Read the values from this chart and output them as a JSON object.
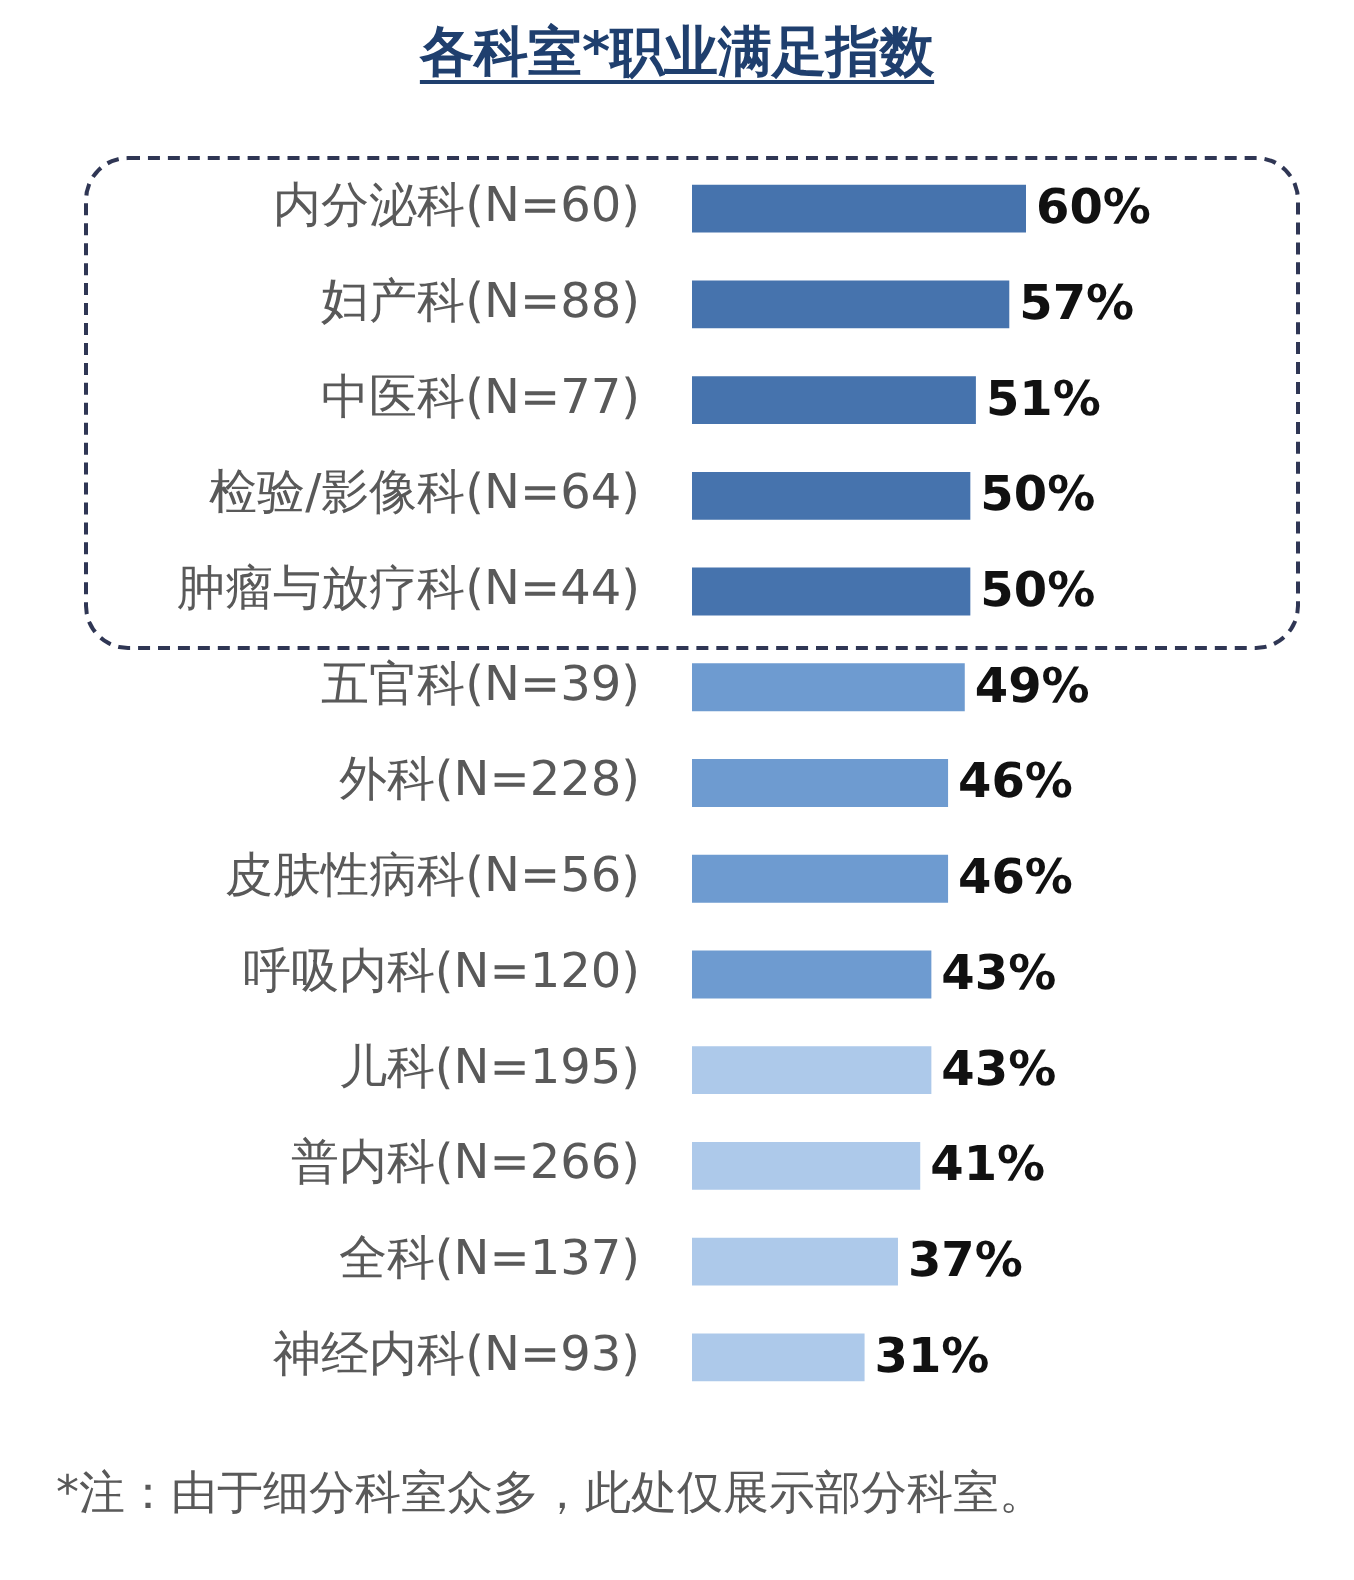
{
  "chart_data": {
    "type": "bar",
    "orientation": "horizontal",
    "title": "各科室*职业满足指数",
    "categories": [
      "内分泌科(N=60)",
      "妇产科(N=88)",
      "中医科(N=77)",
      "检验/影像科(N=64)",
      "肿瘤与放疗科(N=44)",
      "五官科(N=39)",
      "外科(N=228)",
      "皮肤性病科(N=56)",
      "呼吸内科(N=120)",
      "儿科(N=195)",
      "普内科(N=266)",
      "全科(N=137)",
      "神经内科(N=93)"
    ],
    "values": [
      60,
      57,
      51,
      50,
      50,
      49,
      46,
      46,
      43,
      43,
      41,
      37,
      31
    ],
    "value_labels": [
      "60%",
      "57%",
      "51%",
      "50%",
      "50%",
      "49%",
      "46%",
      "46%",
      "43%",
      "43%",
      "41%",
      "37%",
      "31%"
    ],
    "colors": [
      "#4673ad",
      "#4673ad",
      "#4673ad",
      "#4673ad",
      "#4673ad",
      "#6e9bd0",
      "#6e9bd0",
      "#6e9bd0",
      "#6e9bd0",
      "#adc9ea",
      "#adc9ea",
      "#adc9ea",
      "#adc9ea"
    ],
    "tick_labels": "y",
    "legend": false,
    "annotations": [
      "*注：由于细分科室众多，此处仅展示部分科室。"
    ]
  }
}
